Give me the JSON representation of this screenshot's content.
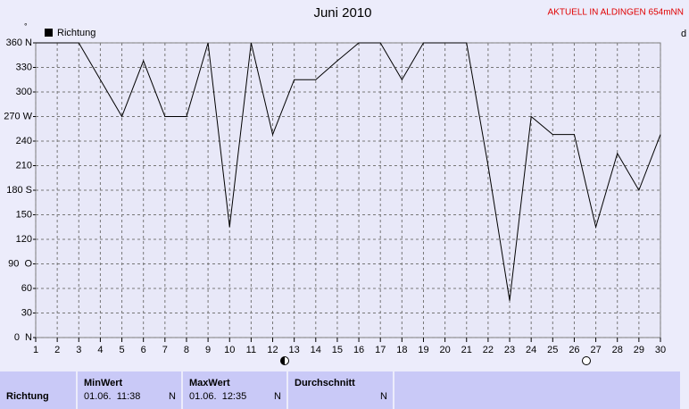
{
  "chart_data": {
    "type": "line",
    "title": "Juni 2010",
    "annotation": "AKTUELL IN ALDINGEN 654mNN",
    "ylabel": "°",
    "y2label": "d",
    "x": [
      1,
      2,
      3,
      4,
      5,
      6,
      7,
      8,
      9,
      10,
      11,
      12,
      13,
      14,
      15,
      16,
      17,
      18,
      19,
      20,
      21,
      22,
      23,
      24,
      25,
      26,
      27,
      28,
      29,
      30
    ],
    "series": [
      {
        "name": "Richtung",
        "color": "#000000",
        "values": [
          360,
          360,
          360,
          315,
          270,
          338,
          270,
          270,
          360,
          135,
          360,
          248,
          315,
          315,
          338,
          360,
          360,
          315,
          360,
          360,
          360,
          210,
          45,
          270,
          248,
          248,
          135,
          225,
          180,
          248
        ]
      }
    ],
    "xlim": [
      1,
      30
    ],
    "xticks": [
      1,
      2,
      3,
      4,
      5,
      6,
      7,
      8,
      9,
      10,
      11,
      12,
      13,
      14,
      15,
      16,
      17,
      18,
      19,
      20,
      21,
      22,
      23,
      24,
      25,
      26,
      27,
      28,
      29,
      30
    ],
    "ylim": [
      0,
      360
    ],
    "yticks": [
      {
        "value": 0,
        "label": "0  N"
      },
      30,
      60,
      {
        "value": 90,
        "label": "90  O"
      },
      120,
      150,
      {
        "value": 180,
        "label": "180 S"
      },
      210,
      240,
      {
        "value": 270,
        "label": "270 W"
      },
      300,
      330,
      {
        "value": 360,
        "label": "360 N"
      }
    ],
    "grid": true,
    "legend": "top-left"
  },
  "table": {
    "row_label": "Richtung",
    "columns": [
      {
        "header": "MinWert",
        "time": "01.06.  11:38",
        "value": "N"
      },
      {
        "header": "MaxWert",
        "time": "01.06.  12:35",
        "value": "N"
      },
      {
        "header": "Durchschnitt",
        "value": "N"
      }
    ]
  }
}
